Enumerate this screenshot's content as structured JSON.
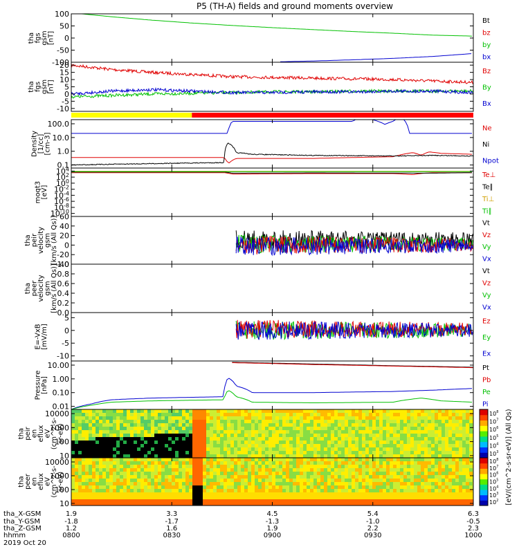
{
  "title": "P5 (TH-A) fields and ground moments overview",
  "time_axis": {
    "rows": [
      {
        "label": "tha_X-GSM",
        "values": [
          "1.9",
          "3.3",
          "4.5",
          "5.4",
          "6.3"
        ]
      },
      {
        "label": "tha_Y-GSM",
        "values": [
          "-1.8",
          "-1.7",
          "-1.3",
          "-1.0",
          "-0.5"
        ]
      },
      {
        "label": "tha_Z-GSM",
        "values": [
          "1.2",
          "1.6",
          "1.9",
          "2.2",
          "2.3"
        ]
      },
      {
        "label": "hhmm",
        "values": [
          "0800",
          "0830",
          "0900",
          "0930",
          "1000"
        ]
      }
    ],
    "date": "2019 Oct 20"
  },
  "colorbar": {
    "label": "[eV/(cm^2-s-sr-eV)] (All Qs)",
    "ticks_top": [
      "10^8",
      "10^7",
      "10^6",
      "10^5",
      "10^4",
      "10^3"
    ],
    "ticks_bottom": [
      "10^8",
      "10^7",
      "10^6",
      "10^5",
      "10^4",
      "10^3",
      "10^2"
    ]
  },
  "chart_data": [
    {
      "type": "line",
      "ylabel": [
        "tha",
        "fgs",
        "gsm",
        "[nT]"
      ],
      "ylim": [
        -100,
        100
      ],
      "yticks": [
        "100",
        "50",
        "0",
        "-50",
        "-100"
      ],
      "legend": [
        {
          "name": "Bt",
          "color": "#000000"
        },
        {
          "name": "bz",
          "color": "#e00000"
        },
        {
          "name": "by",
          "color": "#00c000"
        },
        {
          "name": "bx",
          "color": "#0000d0"
        }
      ],
      "series": [
        {
          "name": "by",
          "x": [
            0.0,
            0.1,
            0.2,
            0.3,
            0.4,
            0.5,
            0.6,
            0.7,
            0.8,
            0.9,
            1.0
          ],
          "y": [
            104,
            88,
            74,
            62,
            52,
            43,
            35,
            27,
            20,
            12,
            8
          ]
        },
        {
          "name": "bx",
          "x": [
            0.52,
            0.6,
            0.7,
            0.8,
            0.9,
            1.0
          ],
          "y": [
            -98,
            -95,
            -90,
            -84,
            -76,
            -64
          ]
        }
      ]
    },
    {
      "type": "line",
      "ylabel": [
        "tha",
        "fgs",
        "gsm",
        "[nT]"
      ],
      "ylim": [
        -12,
        22
      ],
      "yticks": [
        "20",
        "15",
        "10",
        "5",
        "0",
        "-5",
        "-10"
      ],
      "legend": [
        {
          "name": "Bz",
          "color": "#e00000"
        },
        {
          "name": "By",
          "color": "#00c000"
        },
        {
          "name": "Bx",
          "color": "#0000d0"
        }
      ],
      "series": [
        {
          "name": "Bz",
          "x": [
            0.0,
            0.1,
            0.2,
            0.3,
            0.4,
            0.5,
            0.6,
            0.7,
            0.8,
            0.9,
            1.0
          ],
          "y": [
            20,
            17,
            15,
            13.5,
            12,
            11.5,
            11,
            10.5,
            10,
            9,
            8
          ]
        },
        {
          "name": "By",
          "x": [
            0.0,
            0.1,
            0.2,
            0.3,
            0.4,
            0.5,
            0.6,
            0.7,
            0.8,
            0.9,
            1.0
          ],
          "y": [
            -2,
            -1,
            0,
            0.5,
            1,
            1.5,
            1.5,
            2,
            2,
            2,
            2
          ]
        },
        {
          "name": "Bx",
          "x": [
            0.0,
            0.1,
            0.2,
            0.3,
            0.4,
            0.5,
            0.6,
            0.7,
            0.8,
            0.9,
            1.0
          ],
          "y": [
            0,
            2,
            3,
            2,
            1,
            1,
            1.5,
            1.5,
            2,
            2,
            1
          ]
        }
      ]
    },
    {
      "type": "line",
      "ylabel": [
        "Density",
        "[1/cc]",
        "[cm-3]"
      ],
      "log": true,
      "ylim": [
        0.06,
        200
      ],
      "yticks": [
        "100.0",
        "10.0",
        "1.0",
        "0.1"
      ],
      "legend": [
        {
          "name": "Ne",
          "color": "#e00000"
        },
        {
          "name": "Ni",
          "color": "#000000"
        },
        {
          "name": "Npot",
          "color": "#0000d0"
        }
      ],
      "series": [
        {
          "name": "Npot",
          "x": [
            0.0,
            0.39,
            0.4,
            0.7,
            0.72,
            0.78,
            0.8,
            0.82,
            0.84,
            0.86,
            0.9,
            1.0
          ],
          "y": [
            20,
            20,
            150,
            150,
            300,
            90,
            150,
            300,
            20,
            20,
            20,
            20
          ]
        },
        {
          "name": "Ne",
          "x": [
            0.0,
            0.38,
            0.39,
            0.41,
            0.45,
            0.6,
            0.8,
            0.85,
            0.87,
            0.89,
            0.92,
            1.0
          ],
          "y": [
            0.35,
            0.35,
            0.12,
            0.3,
            0.3,
            0.3,
            0.4,
            0.8,
            0.5,
            0.9,
            0.7,
            0.6
          ]
        },
        {
          "name": "Ni",
          "x": [
            0.0,
            0.38,
            0.39,
            0.41,
            0.45,
            0.6,
            0.8,
            0.9,
            1.0
          ],
          "y": [
            0.1,
            0.15,
            4,
            0.8,
            0.6,
            0.5,
            0.45,
            0.5,
            0.45
          ]
        }
      ]
    },
    {
      "type": "line",
      "ylabel": [
        "moqt3",
        "[eV]"
      ],
      "log": true,
      "ylim": [
        1e-11,
        100000.0
      ],
      "yticks": [
        "10^4",
        "10^2",
        "10^0",
        "10^-2",
        "10^-4",
        "10^-6",
        "10^-8",
        "10^-10"
      ],
      "legend": [
        {
          "name": "Te⊥",
          "color": "#e00000"
        },
        {
          "name": "Te∥",
          "color": "#000000"
        },
        {
          "name": "Ti⊥",
          "color": "#d0a000"
        },
        {
          "name": "Ti∥",
          "color": "#00c000"
        }
      ],
      "series": [
        {
          "name": "Te⊥",
          "x": [
            0.0,
            0.38,
            0.4,
            0.6,
            0.8,
            0.85,
            0.9,
            1.0
          ],
          "y": [
            3000,
            3000,
            1000,
            1500,
            1500,
            600,
            3000,
            3000
          ]
        },
        {
          "name": "Te∥",
          "x": [
            0.0,
            0.38,
            0.4,
            0.6,
            0.9,
            1.0
          ],
          "y": [
            5000,
            5000,
            2000,
            2500,
            2000,
            3000
          ]
        },
        {
          "name": "Ti⊥",
          "x": [
            0.0,
            1.0
          ],
          "y": [
            8000,
            8000
          ]
        },
        {
          "name": "Ti∥",
          "x": [
            0.0,
            1.0
          ],
          "y": [
            6000,
            6000
          ]
        }
      ]
    },
    {
      "type": "line",
      "ylabel": [
        "tha",
        "peir",
        "velocity",
        "gsm",
        "[km/s (All Qs)]"
      ],
      "ylim": [
        -40,
        60
      ],
      "yticks": [
        "60",
        "40",
        "20",
        "0",
        "-20",
        "-40"
      ],
      "legend": [
        {
          "name": "Vt",
          "color": "#000000"
        },
        {
          "name": "Vz",
          "color": "#e00000"
        },
        {
          "name": "Vy",
          "color": "#00c000"
        },
        {
          "name": "Vx",
          "color": "#0000d0"
        }
      ],
      "series": [
        {
          "name": "Vt",
          "x": [
            0.41,
            1.0
          ],
          "y": [
            12,
            12
          ]
        },
        {
          "name": "Vy",
          "x": [
            0.41,
            1.0
          ],
          "y": [
            2,
            2
          ]
        },
        {
          "name": "Vz",
          "x": [
            0.41,
            1.0
          ],
          "y": [
            0,
            0
          ]
        },
        {
          "name": "Vx",
          "x": [
            0.41,
            1.0
          ],
          "y": [
            -2,
            -2
          ]
        }
      ]
    },
    {
      "type": "line",
      "ylabel": [
        "tha",
        "peer",
        "velocity",
        "gsm",
        "[km/s (All Qs)]"
      ],
      "ylim": [
        0,
        1
      ],
      "yticks": [
        "1.0",
        "0.8",
        "0.6",
        "0.4",
        "0.2",
        "0.0"
      ],
      "legend": [
        {
          "name": "Vt",
          "color": "#000000"
        },
        {
          "name": "Vz",
          "color": "#e00000"
        },
        {
          "name": "Vy",
          "color": "#00c000"
        },
        {
          "name": "Vx",
          "color": "#0000d0"
        }
      ],
      "series": []
    },
    {
      "type": "line",
      "ylabel": [
        "E=-VxB",
        "[mV/m]"
      ],
      "ylim": [
        -12,
        7
      ],
      "yticks": [
        "5",
        "0",
        "-5",
        "-10"
      ],
      "legend": [
        {
          "name": "Ez",
          "color": "#e00000"
        },
        {
          "name": "Ey",
          "color": "#00c000"
        },
        {
          "name": "Ex",
          "color": "#0000d0"
        }
      ],
      "series": [
        {
          "name": "Ey",
          "x": [
            0.41,
            1.0
          ],
          "y": [
            0,
            0
          ]
        },
        {
          "name": "Ez",
          "x": [
            0.41,
            1.0
          ],
          "y": [
            0.5,
            0.5
          ]
        },
        {
          "name": "Ex",
          "x": [
            0.41,
            1.0
          ],
          "y": [
            0,
            0
          ]
        }
      ]
    },
    {
      "type": "line",
      "ylabel": [
        "Pressure",
        "[nPa]"
      ],
      "log": true,
      "ylim": [
        0.006,
        20
      ],
      "yticks": [
        "10.00",
        "1.00",
        "0.10",
        "0.01"
      ],
      "legend": [
        {
          "name": "Pt",
          "color": "#000000"
        },
        {
          "name": "Pb",
          "color": "#e00000"
        },
        {
          "name": "Pe",
          "color": "#00c000"
        },
        {
          "name": "Pi",
          "color": "#0000d0"
        }
      ],
      "series": [
        {
          "name": "Pt",
          "x": [
            0.4,
            0.6,
            0.8,
            1.0
          ],
          "y": [
            16,
            12,
            9,
            7
          ]
        },
        {
          "name": "Pb",
          "x": [
            0.4,
            0.6,
            0.8,
            1.0
          ],
          "y": [
            15,
            11,
            8.5,
            6.5
          ]
        },
        {
          "name": "Pi",
          "x": [
            0.0,
            0.05,
            0.1,
            0.2,
            0.38,
            0.39,
            0.41,
            0.45,
            0.6,
            0.8,
            0.9,
            1.0
          ],
          "y": [
            0.006,
            0.015,
            0.03,
            0.04,
            0.05,
            1.2,
            0.3,
            0.1,
            0.1,
            0.12,
            0.15,
            0.2
          ]
        },
        {
          "name": "Pe",
          "x": [
            0.0,
            0.05,
            0.1,
            0.2,
            0.38,
            0.39,
            0.41,
            0.45,
            0.6,
            0.8,
            0.87,
            0.92,
            1.0
          ],
          "y": [
            0.006,
            0.012,
            0.02,
            0.025,
            0.03,
            0.15,
            0.05,
            0.02,
            0.018,
            0.02,
            0.04,
            0.025,
            0.02
          ]
        }
      ]
    },
    {
      "type": "heatmap",
      "ylabel": [
        "tha",
        "peir",
        "en",
        "eflux",
        "eV",
        "(cm^2-s-",
        "sr-eV)"
      ],
      "log": true,
      "ylim": [
        7,
        20000
      ],
      "yticks": [
        "10000",
        "1000",
        "100",
        "10"
      ],
      "z_levels": [
        "10^3",
        "10^4",
        "10^5",
        "10^6",
        "10^7",
        "10^8"
      ]
    },
    {
      "type": "heatmap",
      "ylabel": [
        "tha",
        "peer",
        "en",
        "eflux",
        "eV",
        "(cm^2-s-",
        "sr-eV)"
      ],
      "log": true,
      "ylim": [
        7,
        20000
      ],
      "yticks": [
        "10000",
        "1000",
        "100",
        "10"
      ],
      "z_levels": [
        "10^2",
        "10^3",
        "10^4",
        "10^5",
        "10^6",
        "10^7",
        "10^8"
      ]
    }
  ]
}
